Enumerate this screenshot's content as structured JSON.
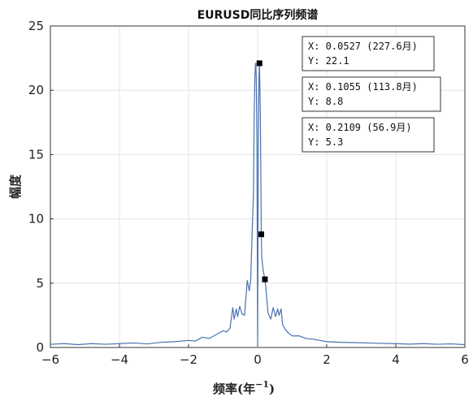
{
  "chart_data": {
    "type": "line",
    "title": "EURUSD同比序列频谱",
    "xlabel": "频率(年",
    "xlabel_exp": "−1",
    "xlabel_close": ")",
    "ylabel": "幅度",
    "xlim": [
      -6,
      6
    ],
    "ylim": [
      0,
      25
    ],
    "xticks": [
      -6,
      -4,
      -2,
      0,
      2,
      4,
      6
    ],
    "xtick_labels": [
      "−6",
      "−4",
      "−2",
      "0",
      "2",
      "4",
      "6"
    ],
    "yticks": [
      0,
      5,
      10,
      15,
      20,
      25
    ],
    "ytick_labels": [
      "0",
      "5",
      "10",
      "15",
      "20",
      "25"
    ],
    "grid": true,
    "line_color": "#4a72b0",
    "series": [
      {
        "x": [
          -6.0,
          -5.6,
          -5.2,
          -4.8,
          -4.4,
          -4.0,
          -3.6,
          -3.2,
          -2.8,
          -2.4,
          -2.0,
          -1.8,
          -1.6,
          -1.4,
          -1.2,
          -1.0,
          -0.9,
          -0.8,
          -0.72,
          -0.68,
          -0.62,
          -0.58,
          -0.52,
          -0.45,
          -0.38,
          -0.3,
          -0.24,
          -0.2,
          -0.16,
          -0.12,
          -0.1,
          -0.08,
          -0.06,
          -0.053,
          -0.04,
          -0.02,
          0.0,
          0.02,
          0.04,
          0.053,
          0.06,
          0.08,
          0.1055,
          0.12,
          0.16,
          0.2109,
          0.24,
          0.3,
          0.38,
          0.45,
          0.52,
          0.58,
          0.62,
          0.68,
          0.72,
          0.8,
          0.9,
          1.0,
          1.2,
          1.4,
          1.6,
          1.8,
          2.0,
          2.4,
          2.8,
          3.2,
          3.6,
          4.0,
          4.4,
          4.8,
          5.2,
          5.6,
          6.0
        ],
        "y": [
          0.25,
          0.3,
          0.22,
          0.3,
          0.25,
          0.3,
          0.35,
          0.28,
          0.4,
          0.45,
          0.55,
          0.5,
          0.8,
          0.7,
          1.0,
          1.3,
          1.2,
          1.5,
          3.1,
          2.2,
          3.0,
          2.4,
          3.2,
          2.6,
          2.5,
          5.2,
          4.4,
          5.3,
          8.8,
          12.0,
          18.0,
          21.0,
          22.1,
          22.1,
          21.0,
          16.0,
          0.0,
          16.0,
          21.0,
          22.1,
          21.0,
          18.0,
          8.8,
          7.0,
          6.0,
          5.3,
          4.6,
          2.7,
          2.2,
          3.1,
          2.4,
          3.0,
          2.5,
          3.0,
          1.8,
          1.4,
          1.1,
          0.9,
          0.9,
          0.7,
          0.65,
          0.55,
          0.45,
          0.4,
          0.38,
          0.35,
          0.32,
          0.3,
          0.26,
          0.3,
          0.25,
          0.28,
          0.22
        ]
      }
    ],
    "markers": [
      {
        "x": 0.0527,
        "y": 22.1
      },
      {
        "x": 0.1055,
        "y": 8.8
      },
      {
        "x": 0.2109,
        "y": 5.3
      }
    ],
    "datatips": [
      {
        "line1": "X: 0.0527 (227.6月)",
        "line2": "Y: 22.1"
      },
      {
        "line1": "X: 0.1055 (113.8月)",
        "line2": "Y: 8.8"
      },
      {
        "line1": "X: 0.2109 (56.9月)",
        "line2": "Y: 5.3"
      }
    ]
  }
}
